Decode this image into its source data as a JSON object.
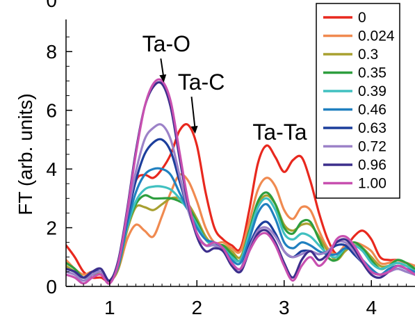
{
  "chart_data": {
    "type": "line",
    "title": "",
    "xlabel": "",
    "ylabel": "FT (arb. units)",
    "xlim": [
      0.5,
      4.5
    ],
    "ylim": [
      0,
      9
    ],
    "x_ticks": [
      "1",
      "2",
      "3",
      "4"
    ],
    "y_ticks": [
      "0",
      "2",
      "4",
      "6",
      "8"
    ],
    "top_y_tick_partial": "0",
    "legend_position": "top-right",
    "annotations": [
      {
        "text": "Ta-O",
        "x": 1.65,
        "y": 8.0,
        "arrow_to": [
          1.62,
          6.95
        ]
      },
      {
        "text": "Ta-C",
        "x": 2.05,
        "y": 6.7,
        "arrow_to": [
          1.98,
          5.2
        ]
      },
      {
        "text": "Ta-Ta",
        "x": 2.95,
        "y": 5.0,
        "arrow_to": null
      }
    ],
    "x": [
      0.5,
      0.6,
      0.7,
      0.8,
      0.9,
      1.0,
      1.1,
      1.2,
      1.3,
      1.4,
      1.5,
      1.6,
      1.7,
      1.8,
      1.9,
      2.0,
      2.1,
      2.2,
      2.3,
      2.4,
      2.5,
      2.6,
      2.7,
      2.8,
      2.9,
      3.0,
      3.1,
      3.2,
      3.3,
      3.4,
      3.5,
      3.6,
      3.7,
      3.8,
      3.9,
      4.0,
      4.1,
      4.2,
      4.3,
      4.4,
      4.5
    ],
    "series": [
      {
        "name": "0",
        "color": "#e8281e",
        "values": [
          1.4,
          1.0,
          0.5,
          0.3,
          0.3,
          0.2,
          0.8,
          2.4,
          3.6,
          3.8,
          3.7,
          4.0,
          4.5,
          5.3,
          5.5,
          4.8,
          3.2,
          2.0,
          1.6,
          1.4,
          1.3,
          2.6,
          4.2,
          4.8,
          4.4,
          3.9,
          4.3,
          4.4,
          3.6,
          2.5,
          1.6,
          1.1,
          1.3,
          1.7,
          1.9,
          1.6,
          1.0,
          0.9,
          0.9,
          0.8,
          0.7
        ]
      },
      {
        "name": "0.024",
        "color": "#f08a50",
        "values": [
          0.9,
          0.6,
          0.4,
          0.5,
          0.4,
          0.2,
          0.6,
          1.6,
          2.1,
          1.9,
          1.7,
          2.4,
          3.2,
          3.8,
          3.6,
          2.9,
          2.0,
          1.5,
          1.5,
          1.3,
          1.2,
          2.2,
          3.3,
          3.7,
          3.4,
          2.6,
          2.3,
          2.7,
          2.6,
          1.9,
          1.3,
          1.1,
          1.4,
          1.5,
          1.4,
          1.2,
          0.8,
          0.8,
          0.9,
          0.8,
          0.7
        ]
      },
      {
        "name": "0.3",
        "color": "#a8a030",
        "values": [
          0.7,
          0.5,
          0.3,
          0.4,
          0.4,
          0.2,
          0.6,
          1.9,
          2.7,
          2.7,
          2.6,
          2.8,
          3.0,
          3.0,
          2.8,
          2.3,
          1.7,
          1.4,
          1.4,
          1.2,
          1.0,
          1.9,
          2.8,
          3.1,
          2.8,
          2.1,
          1.9,
          2.1,
          2.1,
          1.7,
          1.2,
          0.9,
          1.2,
          1.4,
          1.3,
          1.0,
          0.7,
          0.7,
          0.8,
          0.7,
          0.6
        ]
      },
      {
        "name": "0.35",
        "color": "#2e9e3e",
        "values": [
          0.8,
          0.6,
          0.3,
          0.4,
          0.5,
          0.2,
          0.7,
          2.0,
          2.8,
          3.1,
          3.0,
          3.0,
          3.0,
          2.9,
          2.7,
          2.2,
          1.6,
          1.4,
          1.4,
          1.1,
          0.9,
          1.9,
          2.9,
          3.2,
          2.8,
          2.0,
          1.8,
          2.2,
          2.2,
          1.6,
          1.0,
          0.9,
          1.3,
          1.5,
          1.3,
          0.9,
          0.6,
          0.7,
          0.9,
          0.8,
          0.6
        ]
      },
      {
        "name": "0.39",
        "color": "#40c0c0",
        "values": [
          0.6,
          0.5,
          0.3,
          0.4,
          0.5,
          0.2,
          0.7,
          2.0,
          2.9,
          3.3,
          3.4,
          3.4,
          3.3,
          3.0,
          2.6,
          2.1,
          1.6,
          1.4,
          1.3,
          1.0,
          0.9,
          1.8,
          2.7,
          3.0,
          2.6,
          1.8,
          1.6,
          1.8,
          1.7,
          1.4,
          1.1,
          1.0,
          1.3,
          1.4,
          1.2,
          0.8,
          0.6,
          0.7,
          0.8,
          0.7,
          0.5
        ]
      },
      {
        "name": "0.46",
        "color": "#2080c0",
        "values": [
          0.5,
          0.4,
          0.2,
          0.4,
          0.5,
          0.2,
          0.7,
          2.1,
          3.2,
          3.8,
          4.0,
          4.0,
          3.8,
          3.2,
          2.6,
          2.0,
          1.6,
          1.5,
          1.3,
          0.9,
          0.8,
          1.6,
          2.5,
          2.8,
          2.3,
          1.5,
          1.3,
          1.5,
          1.4,
          1.2,
          1.1,
          1.1,
          1.3,
          1.2,
          0.9,
          0.6,
          0.4,
          0.6,
          0.7,
          0.6,
          0.5
        ]
      },
      {
        "name": "0.63",
        "color": "#1c3e9c",
        "values": [
          0.6,
          0.5,
          0.3,
          0.5,
          0.5,
          0.2,
          0.8,
          2.3,
          3.6,
          4.5,
          4.9,
          5.0,
          4.6,
          3.6,
          2.6,
          1.8,
          1.4,
          1.4,
          1.2,
          0.8,
          0.6,
          1.4,
          2.0,
          2.2,
          1.8,
          1.2,
          1.0,
          1.2,
          1.2,
          1.1,
          1.2,
          1.4,
          1.4,
          1.1,
          0.8,
          0.5,
          0.4,
          0.5,
          0.6,
          0.5,
          0.4
        ]
      },
      {
        "name": "0.72",
        "color": "#9c82c8",
        "values": [
          0.5,
          0.4,
          0.2,
          0.4,
          0.5,
          0.2,
          0.8,
          2.4,
          3.9,
          5.0,
          5.4,
          5.5,
          5.0,
          3.8,
          2.6,
          1.8,
          1.4,
          1.4,
          1.2,
          0.8,
          0.6,
          1.3,
          1.9,
          2.0,
          1.7,
          1.2,
          1.0,
          1.1,
          1.2,
          1.1,
          1.2,
          1.5,
          1.5,
          1.2,
          0.8,
          0.5,
          0.4,
          0.5,
          0.6,
          0.5,
          0.4
        ]
      },
      {
        "name": "0.96",
        "color": "#3c2e8c",
        "values": [
          0.6,
          0.5,
          0.3,
          0.5,
          0.6,
          0.2,
          0.9,
          2.6,
          4.6,
          6.1,
          6.8,
          6.9,
          6.1,
          4.4,
          2.8,
          1.7,
          1.2,
          1.3,
          1.2,
          0.7,
          0.5,
          1.2,
          1.8,
          1.9,
          1.5,
          0.8,
          0.3,
          0.9,
          1.2,
          0.9,
          1.1,
          1.5,
          1.6,
          1.3,
          0.8,
          0.4,
          0.3,
          0.5,
          0.7,
          0.6,
          0.4
        ]
      },
      {
        "name": "1.00",
        "color": "#c850b0",
        "values": [
          0.4,
          0.3,
          0.1,
          0.3,
          0.4,
          0.1,
          0.8,
          2.5,
          4.5,
          6.1,
          6.9,
          7.0,
          6.3,
          4.6,
          2.9,
          1.8,
          1.4,
          1.5,
          1.3,
          0.8,
          0.6,
          1.2,
          1.7,
          1.8,
          1.4,
          0.7,
          0.2,
          0.7,
          1.0,
          0.7,
          1.0,
          1.6,
          1.7,
          1.4,
          0.9,
          0.5,
          0.4,
          0.5,
          0.7,
          0.6,
          0.4
        ]
      }
    ]
  }
}
